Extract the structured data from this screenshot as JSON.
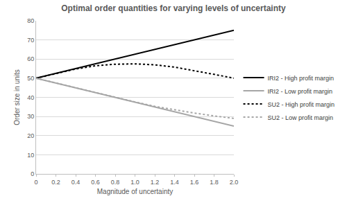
{
  "chart_data": {
    "type": "line",
    "title": "Optimal order quantities for varying levels of uncertainty",
    "x_label": "Magnitude of uncertainty",
    "y_label": "Order size in units",
    "x": [
      0,
      0.2,
      0.4,
      0.6,
      0.8,
      1.0,
      1.2,
      1.4,
      1.6,
      1.8,
      2.0
    ],
    "series": [
      {
        "name": "IRI2 - High profit margin",
        "color": "#000000",
        "line_style": "solid",
        "values": [
          50,
          52.5,
          55,
          57.5,
          60,
          62.5,
          65,
          67.5,
          70,
          72.5,
          75
        ]
      },
      {
        "name": "IRI2 - Low profit margin",
        "color": "#a6a6a6",
        "line_style": "solid",
        "values": [
          50,
          47.5,
          45,
          42.5,
          40,
          37.5,
          35,
          32.5,
          30,
          27.5,
          25
        ]
      },
      {
        "name": "SU2 - High profit margin",
        "color": "#000000",
        "line_style": "dot",
        "values": [
          50,
          52.5,
          54.8,
          56.5,
          57.3,
          57.5,
          57,
          55.8,
          54,
          52,
          50
        ]
      },
      {
        "name": "SU2 - Low profit margin",
        "color": "#a6a6a6",
        "line_style": "dot",
        "values": [
          50,
          47.5,
          45,
          42.5,
          40,
          37.6,
          35.3,
          33.5,
          31.8,
          30.3,
          29
        ]
      }
    ],
    "xlim": [
      0,
      2
    ],
    "xticks": [
      0,
      0.2,
      0.4,
      0.6,
      0.8,
      {
        "value": 1,
        "label": "1.0"
      },
      1.2,
      1.4,
      1.6,
      1.8,
      {
        "value": 2,
        "label": "2.0"
      }
    ],
    "ylim": [
      0,
      80
    ],
    "yticks": [
      0,
      10,
      20,
      30,
      40,
      50,
      60,
      70,
      80
    ],
    "grid": true,
    "legend": "right"
  }
}
